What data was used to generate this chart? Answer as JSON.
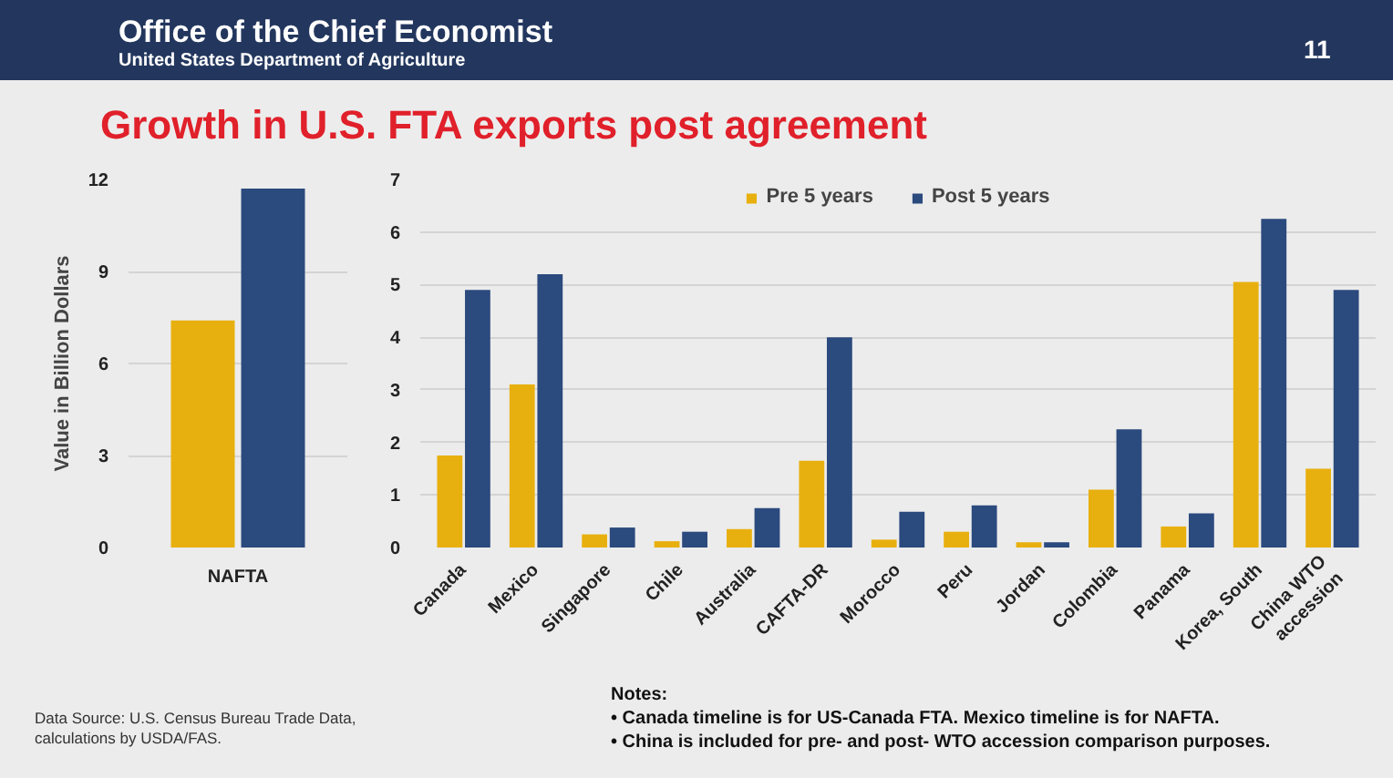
{
  "chart_data": [
    {
      "type": "bar",
      "title": "Growth in U.S. FTA exports post agreement",
      "subtitle": "Office of the Chief Economist",
      "annotations": [
        "United States Department of Agriculture",
        "11",
        "Data Source: U.S. Census Bureau Trade Data, calculations by USDA/FAS."
      ],
      "ylabel": "Value in Billion Dollars",
      "categories": [
        "NAFTA"
      ],
      "series": [
        {
          "color": "#e8b00f",
          "values": [
            7.4
          ]
        },
        {
          "color": "#2b4a7e",
          "values": [
            11.7
          ]
        }
      ],
      "ylim": [
        0,
        12
      ],
      "yticks": [
        0,
        3,
        6,
        9,
        12
      ],
      "grid": "y"
    },
    {
      "type": "bar",
      "categories": [
        "Canada",
        "Mexico",
        "Singapore",
        "Chile",
        "Australia",
        "CAFTA-DR",
        "Morocco",
        "Peru",
        "Jordan",
        "Colombia",
        "Panama",
        "Korea, South",
        "China WTO accession"
      ],
      "series": [
        {
          "name": "Pre 5 years",
          "color": "#e8b00f",
          "values": [
            1.75,
            3.1,
            0.25,
            0.12,
            0.35,
            1.65,
            0.15,
            0.3,
            0.1,
            1.1,
            0.4,
            5.05,
            1.5
          ]
        },
        {
          "name": "Post 5 years",
          "color": "#2b4a7e",
          "values": [
            4.9,
            5.2,
            0.38,
            0.3,
            0.75,
            4.0,
            0.68,
            0.8,
            0.1,
            2.25,
            0.65,
            6.25,
            4.9
          ]
        }
      ],
      "ylim": [
        0,
        7
      ],
      "yticks": [
        0,
        1,
        2,
        3,
        4,
        5,
        6,
        7
      ],
      "grid": "y",
      "legend": "top right",
      "annotations": [
        "Notes:",
        "• Canada timeline is for US-Canada FTA. Mexico timeline is for NAFTA.",
        "• China is included for pre- and post- WTO accession comparison purposes."
      ]
    }
  ]
}
